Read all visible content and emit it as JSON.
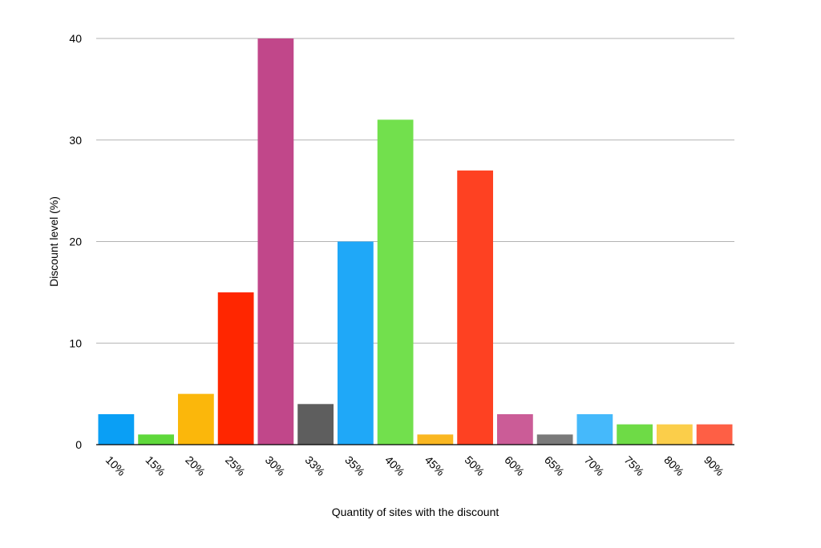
{
  "chart_data": {
    "type": "bar",
    "title": "",
    "xlabel": "Quantity of sites with the discount",
    "ylabel": "Discount level (%)",
    "categories": [
      "10%",
      "15%",
      "20%",
      "25%",
      "30%",
      "33%",
      "35%",
      "40%",
      "45%",
      "50%",
      "60%",
      "65%",
      "70%",
      "75%",
      "80%",
      "90%"
    ],
    "values": [
      3,
      1,
      5,
      15,
      40,
      4,
      20,
      32,
      1,
      27,
      3,
      1,
      3,
      2,
      2,
      2
    ],
    "colors": [
      "#0a9ff5",
      "#5fd83b",
      "#fbb70b",
      "#ff2600",
      "#c1478a",
      "#5e5e5e",
      "#1fa8f8",
      "#72e04d",
      "#fab721",
      "#fe4122",
      "#cb5c97",
      "#7a7a7a",
      "#45b9fb",
      "#6edb46",
      "#fbce4a",
      "#fe5f45"
    ],
    "ylim": [
      0,
      40
    ],
    "yticks": [
      0,
      10,
      20,
      30,
      40
    ],
    "grid": true,
    "legend": "none"
  }
}
